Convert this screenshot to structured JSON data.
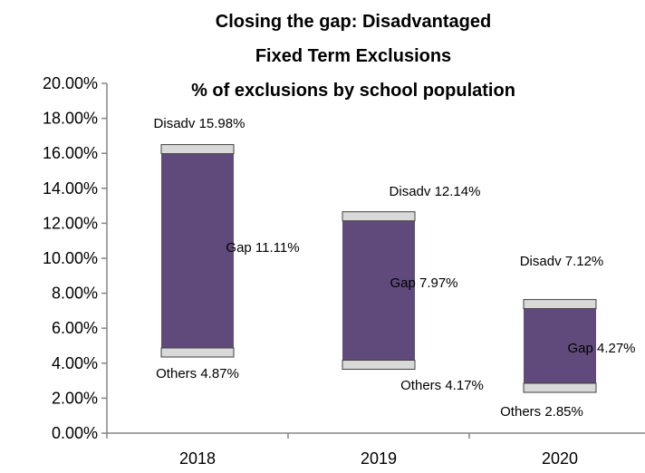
{
  "chart_data": {
    "type": "bar",
    "subtype": "floating-range",
    "title_lines": [
      "Closing the gap: Disadvantaged",
      "Fixed Term Exclusions",
      "% of exclusions by school population"
    ],
    "categories": [
      "2018",
      "2019",
      "2020"
    ],
    "series": [
      {
        "name": "Disadv",
        "values": [
          15.98,
          12.14,
          7.12
        ]
      },
      {
        "name": "Others",
        "values": [
          4.87,
          4.17,
          2.85
        ]
      },
      {
        "name": "Gap",
        "values": [
          11.11,
          7.97,
          4.27
        ]
      }
    ],
    "data_labels": {
      "disadv": [
        "Disadv 15.98%",
        "Disadv 12.14%",
        "Disadv 7.12%"
      ],
      "others": [
        "Others 4.87%",
        "Others 4.17%",
        "Others 2.85%"
      ],
      "gap": [
        "Gap 11.11%",
        "Gap 7.97%",
        "Gap 4.27%"
      ]
    },
    "ylim": [
      0,
      20
    ],
    "yticks": [
      0,
      2,
      4,
      6,
      8,
      10,
      12,
      14,
      16,
      18,
      20
    ],
    "ytick_labels": [
      "0.00%",
      "2.00%",
      "4.00%",
      "6.00%",
      "8.00%",
      "10.00%",
      "12.00%",
      "14.00%",
      "16.00%",
      "18.00%",
      "20.00%"
    ],
    "grid": false,
    "legend": "none",
    "colors": {
      "bar": "#604a7b",
      "marker": "#d9d9d9",
      "marker_border": "#404040",
      "axis": "#868686"
    }
  }
}
